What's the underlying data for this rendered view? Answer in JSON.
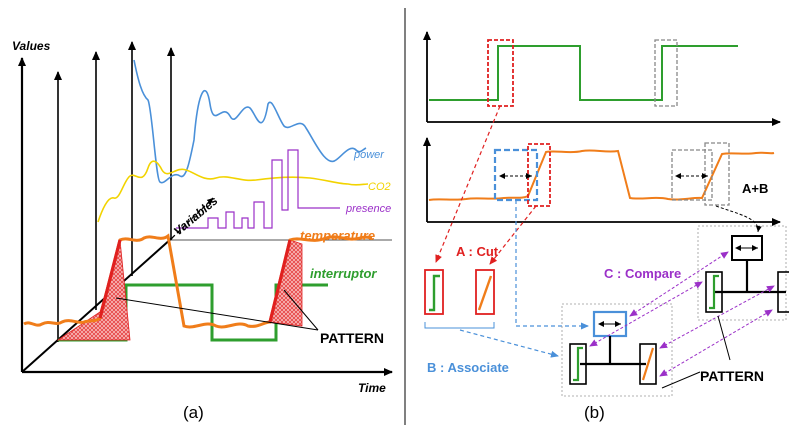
{
  "panel_a": {
    "y_axis_label": "Values",
    "x_axis_label": "Time",
    "depth_axis_label": "Variables",
    "series_labels": {
      "power": "power",
      "co2": "CO2",
      "presence": "presence",
      "temperature": "temperature",
      "interruptor": "interruptor"
    },
    "pattern_label": "PATTERN",
    "caption": "(a)",
    "colors": {
      "power": "#4a90d9",
      "co2": "#f2d300",
      "presence": "#9b30c8",
      "temperature": "#f07d1a",
      "interruptor": "#2e9e2e",
      "pattern": "#e02020"
    }
  },
  "panel_b": {
    "cut_label": "A : Cut",
    "associate_label": "B : Associate",
    "compare_label": "C : Compare",
    "combined_label": "A+B",
    "pattern_label": "PATTERN",
    "caption": "(b)",
    "colors": {
      "cut": "#e02020",
      "associate": "#4a90d9",
      "compare": "#9b30c8"
    }
  }
}
